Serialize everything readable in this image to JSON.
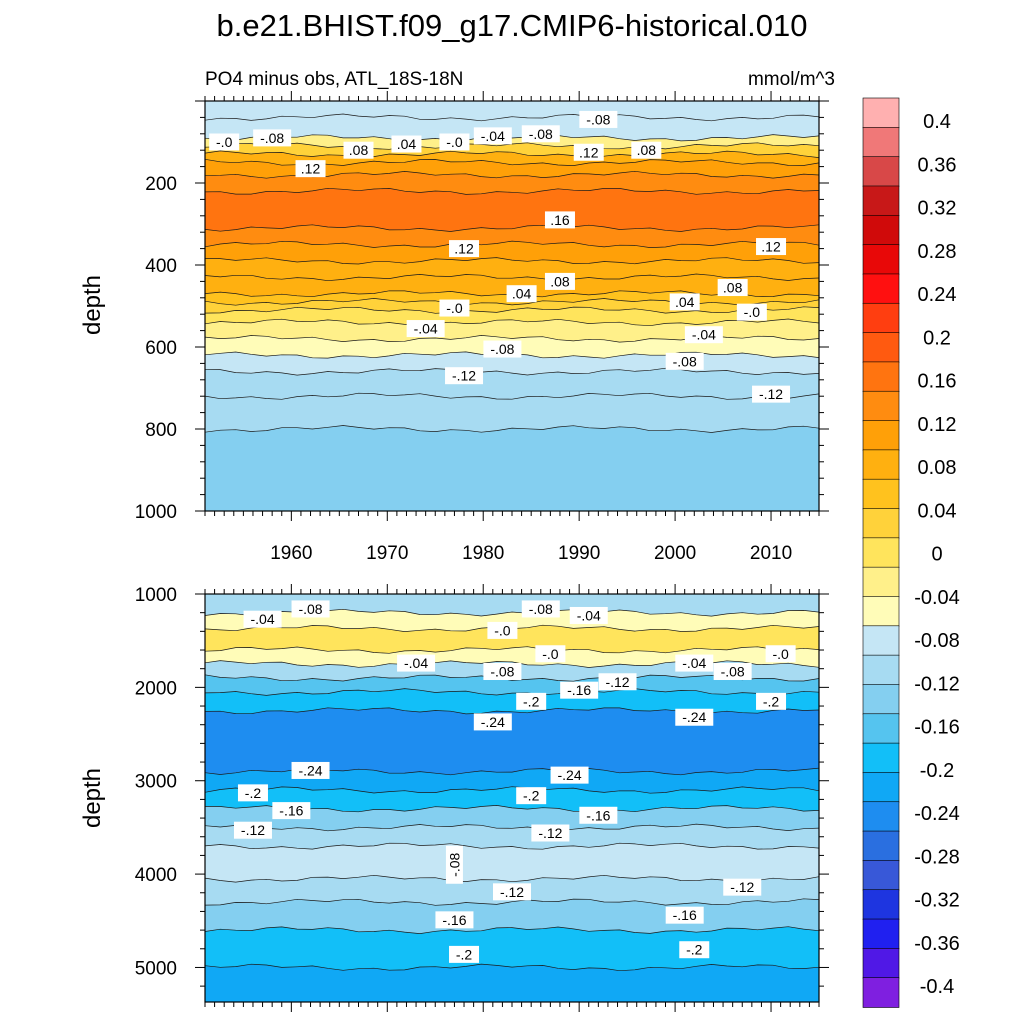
{
  "title": "b.e21.BHIST.f09_g17.CMIP6-historical.010",
  "chart_data": {
    "type": "heatmap",
    "variable_label": "PO4 minus obs, ATL_18S-18N",
    "units": "mmol/m^3",
    "colorbar": {
      "levels": [
        -0.4,
        -0.36,
        -0.32,
        -0.28,
        -0.24,
        -0.2,
        -0.16,
        -0.12,
        -0.08,
        -0.04,
        0,
        0.04,
        0.08,
        0.12,
        0.16,
        0.2,
        0.24,
        0.28,
        0.32,
        0.36,
        0.4
      ],
      "tick_labels": [
        "0.4",
        "0.36",
        "0.32",
        "0.28",
        "0.24",
        "0.2",
        "0.16",
        "0.12",
        "0.08",
        "0.04",
        "0",
        "-0.04",
        "-0.08",
        "-0.12",
        "-0.16",
        "-0.2",
        "-0.24",
        "-0.28",
        "-0.32",
        "-0.36",
        "-0.4"
      ],
      "colors": [
        "#7f1fe0",
        "#5018e6",
        "#2020f0",
        "#1e35e0",
        "#3858d8",
        "#2a6fe0",
        "#1e8df0",
        "#10a8f5",
        "#12bff8",
        "#55c4ef",
        "#84cff0",
        "#a7dbf2",
        "#c5e6f5",
        "#fffcb8",
        "#fff08a",
        "#ffe45c",
        "#ffd23a",
        "#ffc21e",
        "#ffb010",
        "#ffa008",
        "#ff8c10",
        "#ff7410",
        "#ff5a10",
        "#ff3e10",
        "#ff1010",
        "#e80808",
        "#d00a0a",
        "#c81818",
        "#d84848",
        "#f07878",
        "#ffb0b0"
      ]
    },
    "panels": [
      {
        "x_axis": {
          "ticks": [
            1960,
            1970,
            1980,
            1990,
            2000,
            2010
          ],
          "tick_labels": [
            "1960",
            "1970",
            "1980",
            "1990",
            "2000",
            "2010"
          ],
          "range": [
            1951,
            2015
          ]
        },
        "y_axis": {
          "label": "depth",
          "ticks": [
            200,
            400,
            600,
            800,
            1000
          ],
          "tick_labels": [
            "200",
            "400",
            "600",
            "800",
            "1000"
          ],
          "range": [
            0,
            1000
          ],
          "inverted": true
        },
        "bands": [
          {
            "depth": [
              0,
              40
            ],
            "value": -0.07
          },
          {
            "depth": [
              40,
              90
            ],
            "value": -0.09
          },
          {
            "depth": [
              90,
              110
            ],
            "value": -0.04
          },
          {
            "depth": [
              110,
              130
            ],
            "value": 0.03
          },
          {
            "depth": [
              130,
              150
            ],
            "value": 0.07
          },
          {
            "depth": [
              150,
              180
            ],
            "value": 0.11
          },
          {
            "depth": [
              180,
              220
            ],
            "value": 0.13
          },
          {
            "depth": [
              220,
              310
            ],
            "value": 0.15
          },
          {
            "depth": [
              310,
              350
            ],
            "value": 0.13
          },
          {
            "depth": [
              350,
              390
            ],
            "value": 0.11
          },
          {
            "depth": [
              390,
              430
            ],
            "value": 0.09
          },
          {
            "depth": [
              430,
              470
            ],
            "value": 0.07
          },
          {
            "depth": [
              470,
              490
            ],
            "value": 0.05
          },
          {
            "depth": [
              490,
              510
            ],
            "value": 0.02
          },
          {
            "depth": [
              510,
              540
            ],
            "value": -0.01
          },
          {
            "depth": [
              540,
              580
            ],
            "value": -0.03
          },
          {
            "depth": [
              580,
              620
            ],
            "value": -0.05
          },
          {
            "depth": [
              620,
              660
            ],
            "value": -0.08
          },
          {
            "depth": [
              660,
              720
            ],
            "value": -0.1
          },
          {
            "depth": [
              720,
              800
            ],
            "value": -0.12
          },
          {
            "depth": [
              800,
              1000
            ],
            "value": -0.13
          }
        ],
        "contour_labels": [
          {
            "text": "-.0",
            "year": 1953,
            "depth": 100
          },
          {
            "text": "-.08",
            "year": 1958,
            "depth": 90
          },
          {
            "text": "-.08",
            "year": 1992,
            "depth": 45
          },
          {
            "text": "-.08",
            "year": 1986,
            "depth": 80
          },
          {
            "text": "-.04",
            "year": 1981,
            "depth": 85
          },
          {
            "text": "-.0",
            "year": 1977,
            "depth": 100
          },
          {
            "text": ".04",
            "year": 1972,
            "depth": 105
          },
          {
            "text": ".08",
            "year": 1967,
            "depth": 120
          },
          {
            "text": ".12",
            "year": 1962,
            "depth": 165
          },
          {
            "text": ".12",
            "year": 1991,
            "depth": 125
          },
          {
            "text": ".08",
            "year": 1997,
            "depth": 120
          },
          {
            "text": ".16",
            "year": 1988,
            "depth": 290
          },
          {
            "text": ".12",
            "year": 1978,
            "depth": 360
          },
          {
            "text": ".12",
            "year": 2010,
            "depth": 355
          },
          {
            "text": ".08",
            "year": 1988,
            "depth": 440
          },
          {
            "text": ".08",
            "year": 2006,
            "depth": 455
          },
          {
            "text": ".04",
            "year": 1984,
            "depth": 470
          },
          {
            "text": ".04",
            "year": 2001,
            "depth": 490
          },
          {
            "text": "-.0",
            "year": 1977,
            "depth": 505
          },
          {
            "text": "-.0",
            "year": 2008,
            "depth": 515
          },
          {
            "text": "-.04",
            "year": 1974,
            "depth": 555
          },
          {
            "text": "-.04",
            "year": 2003,
            "depth": 570
          },
          {
            "text": "-.08",
            "year": 1982,
            "depth": 605
          },
          {
            "text": "-.08",
            "year": 2001,
            "depth": 635
          },
          {
            "text": "-.12",
            "year": 1978,
            "depth": 670
          },
          {
            "text": "-.12",
            "year": 2010,
            "depth": 715
          }
        ]
      },
      {
        "x_axis": {
          "ticks": [
            1960,
            1970,
            1980,
            1990,
            2000,
            2010
          ],
          "tick_labels": [],
          "range": [
            1951,
            2015
          ]
        },
        "y_axis": {
          "label": "depth",
          "ticks": [
            1000,
            2000,
            3000,
            4000,
            5000
          ],
          "tick_labels": [
            "1000",
            "2000",
            "3000",
            "4000",
            "5000"
          ],
          "range": [
            1000,
            5370
          ],
          "inverted": true
        },
        "bands": [
          {
            "depth": [
              1000,
              1200
            ],
            "value": -0.1
          },
          {
            "depth": [
              1200,
              1370
            ],
            "value": -0.06
          },
          {
            "depth": [
              1370,
              1600
            ],
            "value": 0.01
          },
          {
            "depth": [
              1600,
              1750
            ],
            "value": -0.05
          },
          {
            "depth": [
              1750,
              1900
            ],
            "value": -0.1
          },
          {
            "depth": [
              1900,
              2050
            ],
            "value": -0.15
          },
          {
            "depth": [
              2050,
              2250
            ],
            "value": -0.19
          },
          {
            "depth": [
              2250,
              2900
            ],
            "value": -0.25
          },
          {
            "depth": [
              2900,
              3100
            ],
            "value": -0.21
          },
          {
            "depth": [
              3100,
              3300
            ],
            "value": -0.18
          },
          {
            "depth": [
              3300,
              3500
            ],
            "value": -0.14
          },
          {
            "depth": [
              3500,
              3700
            ],
            "value": -0.11
          },
          {
            "depth": [
              3700,
              4050
            ],
            "value": -0.09
          },
          {
            "depth": [
              4050,
              4300
            ],
            "value": -0.11
          },
          {
            "depth": [
              4300,
              4600
            ],
            "value": -0.14
          },
          {
            "depth": [
              4600,
              5000
            ],
            "value": -0.18
          },
          {
            "depth": [
              5000,
              5370
            ],
            "value": -0.21
          }
        ],
        "contour_labels": [
          {
            "text": "-.04",
            "year": 1957,
            "depth": 1270
          },
          {
            "text": "-.08",
            "year": 1962,
            "depth": 1160
          },
          {
            "text": "-.08",
            "year": 1986,
            "depth": 1160
          },
          {
            "text": "-.04",
            "year": 1991,
            "depth": 1230
          },
          {
            "text": "-.0",
            "year": 1982,
            "depth": 1390
          },
          {
            "text": "-.0",
            "year": 1987,
            "depth": 1640
          },
          {
            "text": "-.0",
            "year": 2011,
            "depth": 1640
          },
          {
            "text": "-.04",
            "year": 1973,
            "depth": 1740
          },
          {
            "text": "-.04",
            "year": 2002,
            "depth": 1740
          },
          {
            "text": "-.08",
            "year": 1982,
            "depth": 1830
          },
          {
            "text": "-.08",
            "year": 2006,
            "depth": 1830
          },
          {
            "text": "-.12",
            "year": 1994,
            "depth": 1940
          },
          {
            "text": "-.16",
            "year": 1990,
            "depth": 2030
          },
          {
            "text": "-.2",
            "year": 1985,
            "depth": 2150
          },
          {
            "text": "-.2",
            "year": 2010,
            "depth": 2150
          },
          {
            "text": "-.24",
            "year": 1981,
            "depth": 2370
          },
          {
            "text": "-.24",
            "year": 2002,
            "depth": 2320
          },
          {
            "text": "-.24",
            "year": 1962,
            "depth": 2890
          },
          {
            "text": "-.24",
            "year": 1989,
            "depth": 2940
          },
          {
            "text": "-.2",
            "year": 1956,
            "depth": 3130
          },
          {
            "text": "-.2",
            "year": 1985,
            "depth": 3160
          },
          {
            "text": "-.16",
            "year": 1960,
            "depth": 3320
          },
          {
            "text": "-.16",
            "year": 1992,
            "depth": 3370
          },
          {
            "text": "-.12",
            "year": 1956,
            "depth": 3530
          },
          {
            "text": "-.12",
            "year": 1987,
            "depth": 3560
          },
          {
            "text": "-.08",
            "year": 1977,
            "depth": 3900,
            "vertical": true
          },
          {
            "text": "-.12",
            "year": 1983,
            "depth": 4190
          },
          {
            "text": "-.12",
            "year": 2007,
            "depth": 4140
          },
          {
            "text": "-.16",
            "year": 1977,
            "depth": 4490
          },
          {
            "text": "-.16",
            "year": 2001,
            "depth": 4440
          },
          {
            "text": "-.2",
            "year": 1978,
            "depth": 4860
          },
          {
            "text": "-.2",
            "year": 2002,
            "depth": 4810
          }
        ]
      }
    ]
  }
}
